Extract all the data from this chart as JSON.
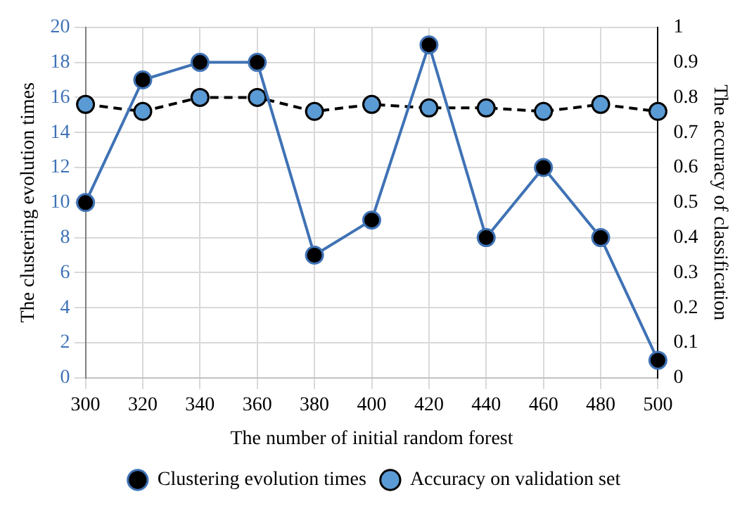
{
  "chart_data": {
    "type": "line",
    "xlabel": "The number of initial random forest",
    "ylabel": "The clustering evolution times",
    "y2label": "The accuracy of classification",
    "categories": [
      "300",
      "320",
      "340",
      "360",
      "380",
      "400",
      "420",
      "440",
      "460",
      "480",
      "500"
    ],
    "series": [
      {
        "name": "Clustering evolution times",
        "color": "#3f72b5",
        "line_style": "solid",
        "values": [
          10,
          17,
          18,
          18,
          7,
          9,
          19,
          8,
          12,
          8,
          1
        ]
      },
      {
        "name": "Accuracy on validation set",
        "color": "#000000",
        "line_style": "dashed",
        "axis": "y2",
        "values": [
          0.78,
          0.76,
          0.8,
          0.8,
          0.76,
          0.78,
          0.77,
          0.77,
          0.76,
          0.78,
          0.76
        ]
      }
    ],
    "ylim": [
      0,
      20
    ],
    "yticks": [
      0,
      2,
      4,
      6,
      8,
      10,
      12,
      14,
      16,
      18,
      20
    ],
    "y2lim": [
      0,
      1
    ],
    "y2ticks": [
      0,
      0.1,
      0.2,
      0.3,
      0.4,
      0.5,
      0.6,
      0.7,
      0.8,
      0.9,
      1
    ],
    "grid": true,
    "legend": "bottom",
    "marker": "circle"
  }
}
